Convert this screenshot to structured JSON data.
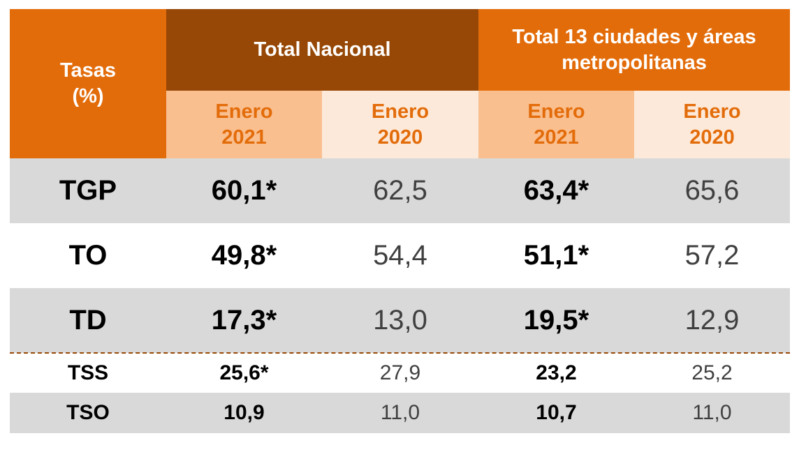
{
  "header": {
    "rates_label": "Tasas\n(%)",
    "group1": "Total Nacional",
    "group2": "Total 13 ciudades y áreas metropolitanas",
    "periods": [
      "Enero\n2021",
      "Enero\n2020",
      "Enero\n2021",
      "Enero\n2020"
    ]
  },
  "colors": {
    "orange": "#E36C0A",
    "brown": "#974806",
    "light_orange": "#FABF8F",
    "pale_orange": "#FDE9D9",
    "gray": "#D9D9D9"
  },
  "rows": [
    {
      "label": "TGP",
      "values": [
        "60,1*",
        "62,5",
        "63,4*",
        "65,6"
      ]
    },
    {
      "label": "TO",
      "values": [
        "49,8*",
        "54,4",
        "51,1*",
        "57,2"
      ]
    },
    {
      "label": "TD",
      "values": [
        "17,3*",
        "13,0",
        "19,5*",
        "12,9"
      ]
    },
    {
      "label": "TSS",
      "values": [
        "25,6*",
        "27,9",
        "23,2",
        "25,2"
      ]
    },
    {
      "label": "TSO",
      "values": [
        "10,9",
        "11,0",
        "10,7",
        "11,0"
      ]
    }
  ]
}
